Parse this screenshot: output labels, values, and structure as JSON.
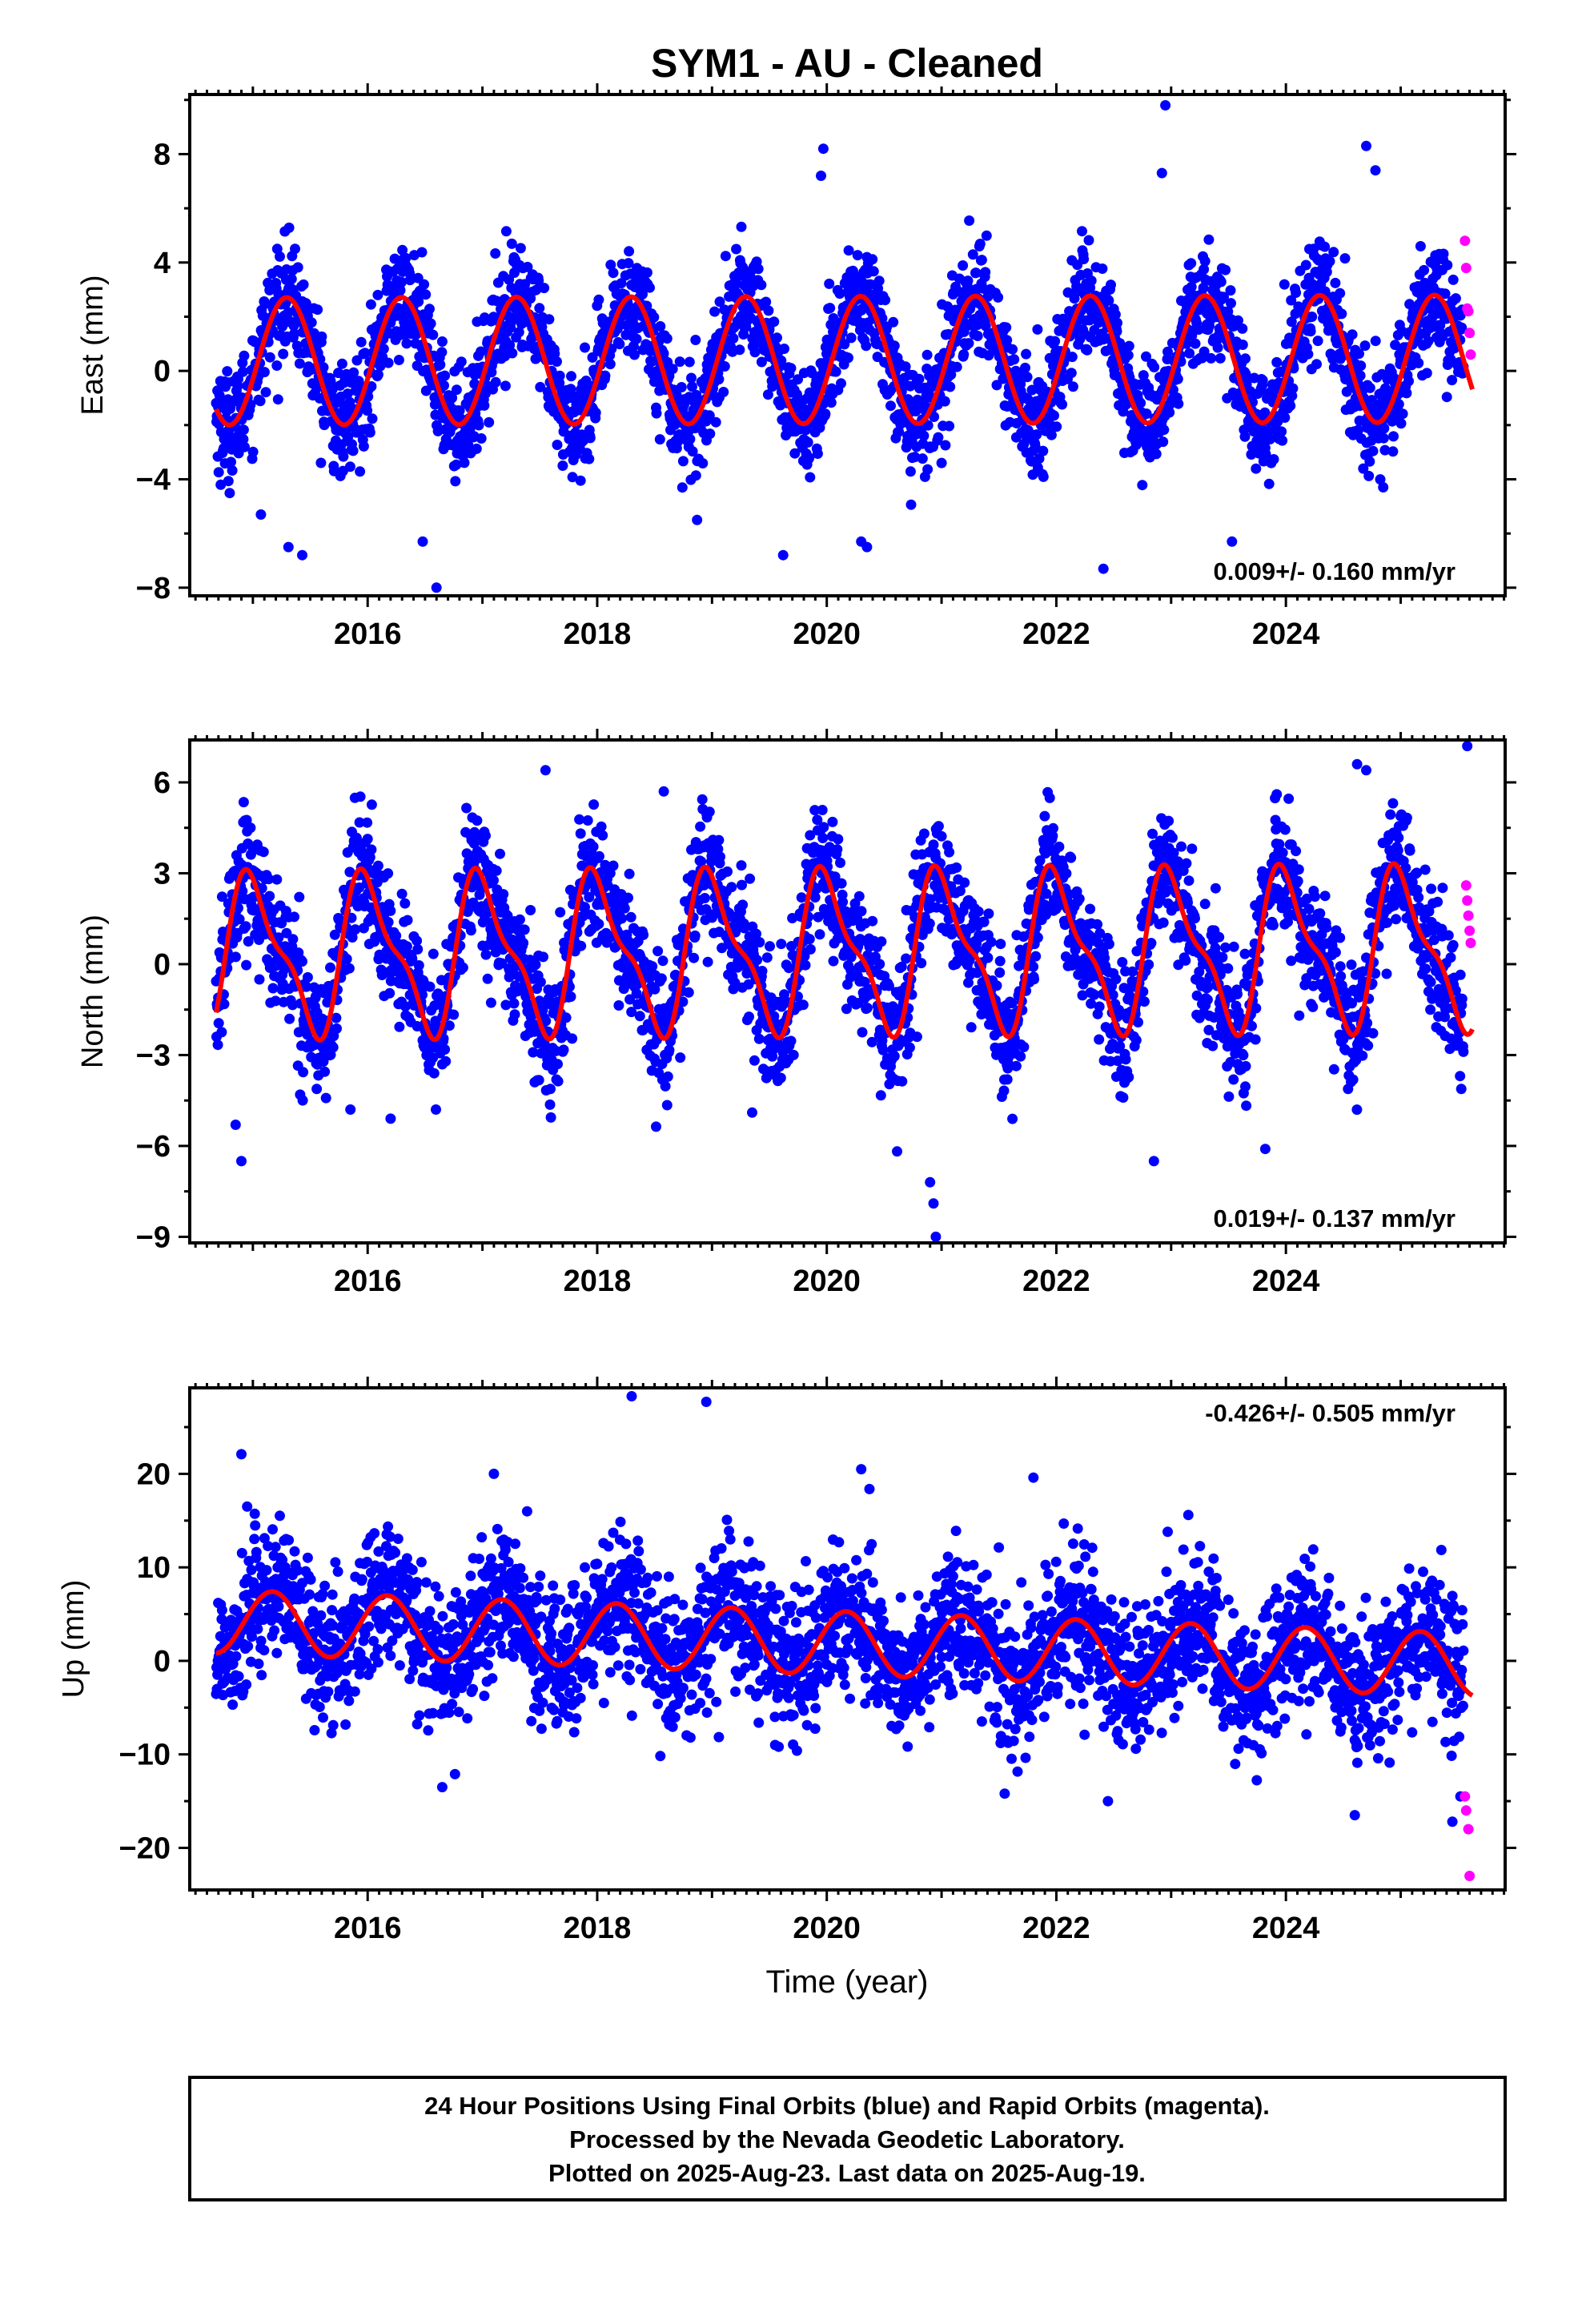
{
  "page": {
    "title": "SYM1  - AU - Cleaned",
    "xlabel": "Time (year)",
    "footnote": [
      "24 Hour Positions Using Final Orbits (blue) and Rapid Orbits (magenta).",
      "Processed by the Nevada Geodetic Laboratory.",
      "Plotted on 2025-Aug-23. Last data on 2025-Aug-19."
    ]
  },
  "colors": {
    "final_orbits": "#0000ff",
    "rapid_orbits": "#ff00ff",
    "model": "#ff0000",
    "frame": "#000000"
  },
  "chart_data": [
    {
      "type": "scatter",
      "ylabel": "East (mm)",
      "rate_label": "0.009+/- 0.160 mm/yr",
      "xlim": [
        2014.45,
        2025.91
      ],
      "ylim": [
        -8.3,
        10.2
      ],
      "xticks": [
        2016,
        2018,
        2020,
        2022,
        2024
      ],
      "yticks": [
        -8,
        -4,
        0,
        4,
        8
      ],
      "data_range": [
        2014.68,
        2025.63
      ],
      "rapid_start": 2025.55,
      "series": [
        {
          "name": "Final Orbits",
          "model": {
            "offset": 0.4,
            "trend": 0.009,
            "annual_amp": 2.35,
            "annual_phase": 6.0,
            "semiannual_amp": 0.0,
            "semiannual_phase": 0.0
          },
          "scatter_sigma": 1.0,
          "points_x": [
            2014.72,
            2015.07,
            2015.31,
            2015.43,
            2016.48,
            2016.6,
            2018.87,
            2019.62,
            2019.95,
            2019.97,
            2020.3,
            2020.35,
            2022.41,
            2022.92,
            2022.95,
            2023.53,
            2024.7,
            2024.78
          ],
          "points_y": [
            -4.2,
            -5.3,
            -6.5,
            -6.8,
            -6.3,
            -8.0,
            -5.5,
            -6.8,
            7.2,
            8.2,
            -6.3,
            -6.5,
            -7.3,
            7.3,
            9.8,
            -6.3,
            8.3,
            7.4
          ]
        },
        {
          "name": "Rapid Orbits",
          "points_x": [
            2025.56,
            2025.57,
            2025.58,
            2025.59,
            2025.6,
            2025.61
          ],
          "points_y": [
            4.8,
            3.8,
            2.3,
            2.2,
            1.4,
            0.6
          ]
        }
      ]
    },
    {
      "type": "scatter",
      "ylabel": "North (mm)",
      "rate_label": "0.019+/- 0.137 mm/yr",
      "xlim": [
        2014.45,
        2025.91
      ],
      "ylim": [
        -9.2,
        7.4
      ],
      "xticks": [
        2016,
        2018,
        2020,
        2022,
        2024
      ],
      "yticks": [
        -9,
        -6,
        -3,
        0,
        3,
        6
      ],
      "data_range": [
        2014.68,
        2025.63
      ],
      "rapid_start": 2025.55,
      "series": [
        {
          "name": "Final Orbits",
          "model": {
            "offset": 0.4,
            "trend": 0.019,
            "annual_amp": 2.4,
            "annual_phase": 1.5,
            "semiannual_amp": 0.85,
            "semiannual_phase": 3.0
          },
          "scatter_sigma": 1.05,
          "points_x": [
            2014.85,
            2014.9,
            2015.85,
            2016.2,
            2017.55,
            2018.58,
            2019.35,
            2020.9,
            2020.93,
            2020.95,
            2022.85,
            2023.82,
            2024.62,
            2024.7,
            2025.58
          ],
          "points_y": [
            -5.3,
            -6.5,
            -4.8,
            -5.1,
            6.4,
            5.7,
            -4.9,
            -7.2,
            -7.9,
            -9.0,
            -6.5,
            -6.1,
            6.6,
            6.4,
            7.2
          ]
        },
        {
          "name": "Rapid Orbits",
          "points_x": [
            2025.57,
            2025.58,
            2025.59,
            2025.6,
            2025.61
          ],
          "points_y": [
            2.6,
            2.1,
            1.6,
            1.1,
            0.7
          ]
        }
      ]
    },
    {
      "type": "scatter",
      "ylabel": "Up (mm)",
      "rate_label": "-0.426+/- 0.505 mm/yr",
      "xlim": [
        2014.45,
        2025.91
      ],
      "ylim": [
        -24.5,
        29.2
      ],
      "xticks": [
        2016,
        2018,
        2020,
        2022,
        2024
      ],
      "yticks": [
        -20,
        -10,
        0,
        10,
        20
      ],
      "data_range": [
        2014.68,
        2025.63
      ],
      "rapid_start": 2025.55,
      "series": [
        {
          "name": "Final Orbits",
          "model": {
            "offset": 1.95,
            "trend": -0.426,
            "annual_amp": 3.4,
            "annual_phase": 0.5,
            "semiannual_amp": 0.0,
            "semiannual_phase": 0.0
          },
          "scatter_sigma": 3.8,
          "points_x": [
            2014.9,
            2014.95,
            2016.65,
            2017.1,
            2018.3,
            2018.95,
            2019.55,
            2020.3,
            2021.55,
            2021.8,
            2022.45,
            2023.15,
            2024.6,
            2025.45,
            2025.52
          ],
          "points_y": [
            22.1,
            16.5,
            -13.5,
            20.0,
            28.3,
            27.7,
            -9.0,
            20.5,
            -14.2,
            19.6,
            -15.0,
            15.6,
            -16.5,
            -17.2,
            -14.5
          ]
        },
        {
          "name": "Rapid Orbits",
          "points_x": [
            2025.56,
            2025.57,
            2025.59,
            2025.6
          ],
          "points_y": [
            -14.5,
            -16.0,
            -18.0,
            -23.0
          ]
        }
      ]
    }
  ]
}
